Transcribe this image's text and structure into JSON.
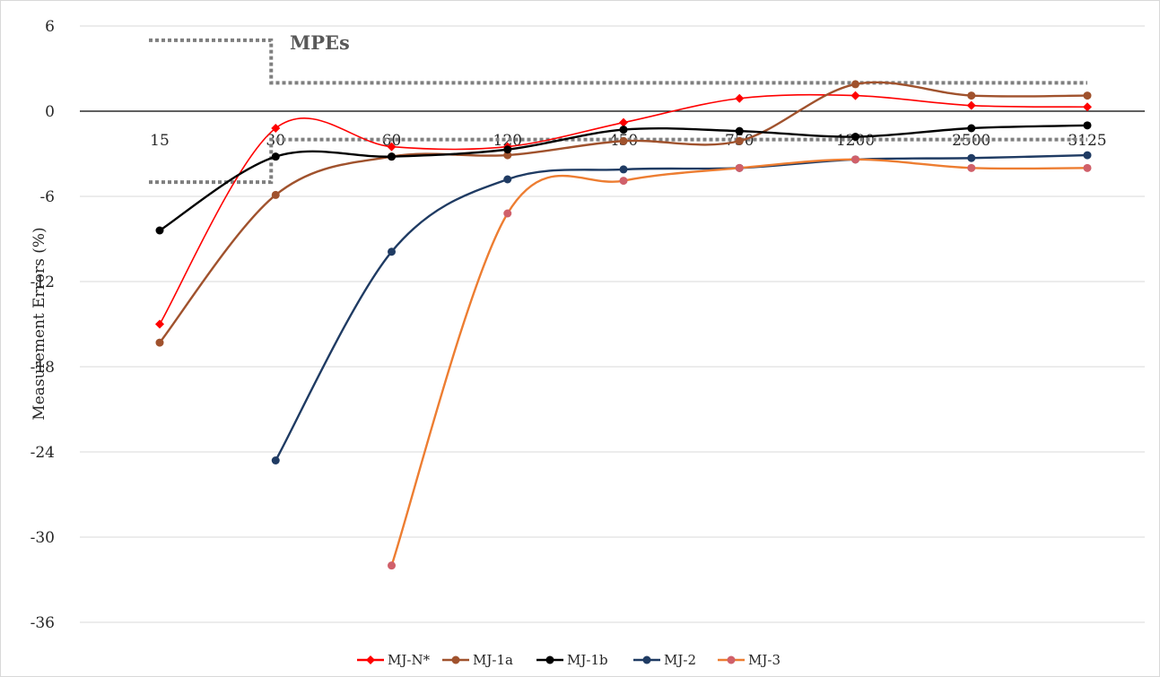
{
  "chart_data": {
    "type": "line",
    "ylabel": "Measurement Errors (%)",
    "xlabel": "",
    "ylim": [
      -36,
      6
    ],
    "yticks": [
      6,
      0,
      -6,
      -12,
      -18,
      -24,
      -30,
      -36
    ],
    "categories": [
      "15",
      "30",
      "60",
      "120",
      "450",
      "750",
      "1200",
      "2500",
      "3125"
    ],
    "grid": "horizontal",
    "legend_position": "bottom",
    "annotation": "MPEs",
    "mpe_color": "#7f7f7f",
    "mpe_upper": [
      5,
      2,
      2,
      2,
      2,
      2,
      2,
      2,
      2
    ],
    "mpe_lower": [
      -5,
      -2,
      -2,
      -2,
      -2,
      -2,
      -2,
      -2,
      -2
    ],
    "series": [
      {
        "name": "MJ-N*",
        "color": "#ff0000",
        "marker": "diamond",
        "values": [
          -15.0,
          -1.2,
          -2.5,
          -2.5,
          -0.8,
          0.9,
          1.1,
          0.4,
          0.3
        ]
      },
      {
        "name": "MJ-1a",
        "color": "#a0522d",
        "marker": "circle",
        "values": [
          -16.3,
          -5.9,
          -3.2,
          -3.1,
          -2.1,
          -2.1,
          1.9,
          1.1,
          1.1
        ]
      },
      {
        "name": "MJ-1b",
        "color": "#000000",
        "marker": "circle",
        "values": [
          -8.4,
          -3.2,
          -3.2,
          -2.7,
          -1.3,
          -1.4,
          -1.8,
          -1.2,
          -1.0
        ]
      },
      {
        "name": "MJ-2",
        "color": "#1f3b63",
        "marker": "circle",
        "values": [
          null,
          -24.6,
          -9.9,
          -4.8,
          -4.1,
          -4.0,
          -3.4,
          -3.3,
          -3.1
        ]
      },
      {
        "name": "MJ-3",
        "color": "#ed7d31",
        "marker_color": "#d0606a",
        "marker": "circle",
        "values": [
          null,
          null,
          -32.0,
          -7.2,
          -4.9,
          -4.0,
          -3.4,
          -4.0,
          -4.0
        ]
      }
    ]
  }
}
